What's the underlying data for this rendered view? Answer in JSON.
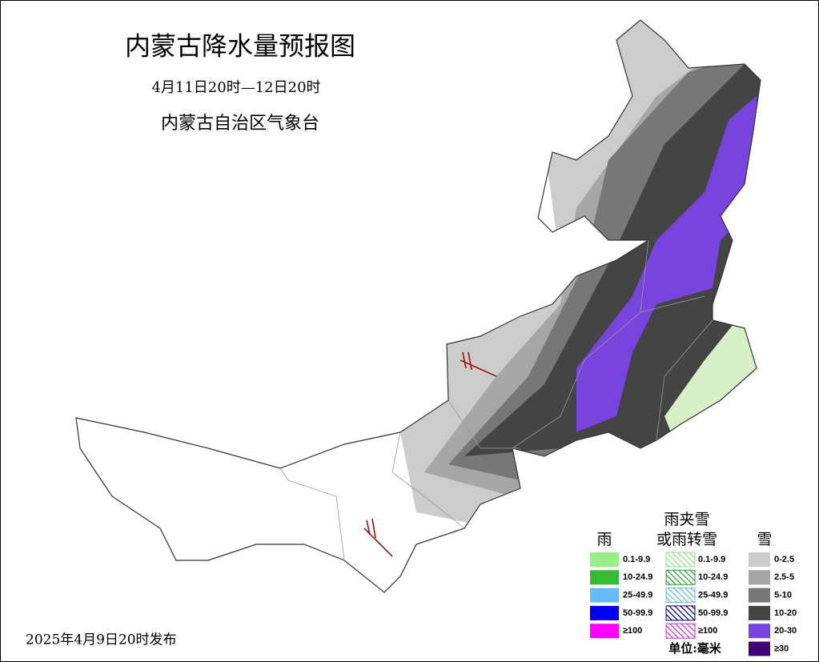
{
  "header": {
    "title": "内蒙古降水量预报图",
    "period": "4月11日20时—12日20时",
    "agency": "内蒙古自治区气象台"
  },
  "footer": {
    "issued": "2025年4月9日20时发布"
  },
  "legend": {
    "groups": [
      {
        "title": [
          "雨"
        ],
        "pattern": "solid",
        "items": [
          {
            "label": "0.1-9.9",
            "color": "#99ee88"
          },
          {
            "label": "10-24.9",
            "color": "#33bb33"
          },
          {
            "label": "25-49.9",
            "color": "#66bbff"
          },
          {
            "label": "50-99.9",
            "color": "#0000ee"
          },
          {
            "label": "≥100",
            "color": "#ff00ff"
          }
        ]
      },
      {
        "title": [
          "雨夹雪",
          "或雨转雪"
        ],
        "pattern": "hatch",
        "items": [
          {
            "label": "0.1-9.9",
            "color": "#99dd88"
          },
          {
            "label": "10-24.9",
            "color": "#339933"
          },
          {
            "label": "25-49.9",
            "color": "#66bbdd"
          },
          {
            "label": "50-99.9",
            "color": "#000077"
          },
          {
            "label": "≥100",
            "color": "#cc33cc"
          }
        ]
      },
      {
        "title": [
          "雪"
        ],
        "pattern": "solid",
        "items": [
          {
            "label": "0-2.5",
            "color": "#cccccc"
          },
          {
            "label": "2.5-5",
            "color": "#a6a6a6"
          },
          {
            "label": "5-10",
            "color": "#777777"
          },
          {
            "label": "10-20",
            "color": "#444444"
          },
          {
            "label": "20-30",
            "color": "#7744dd"
          },
          {
            "label": "≥30",
            "color": "#440077"
          }
        ]
      }
    ],
    "unit": "单位:毫米"
  }
}
